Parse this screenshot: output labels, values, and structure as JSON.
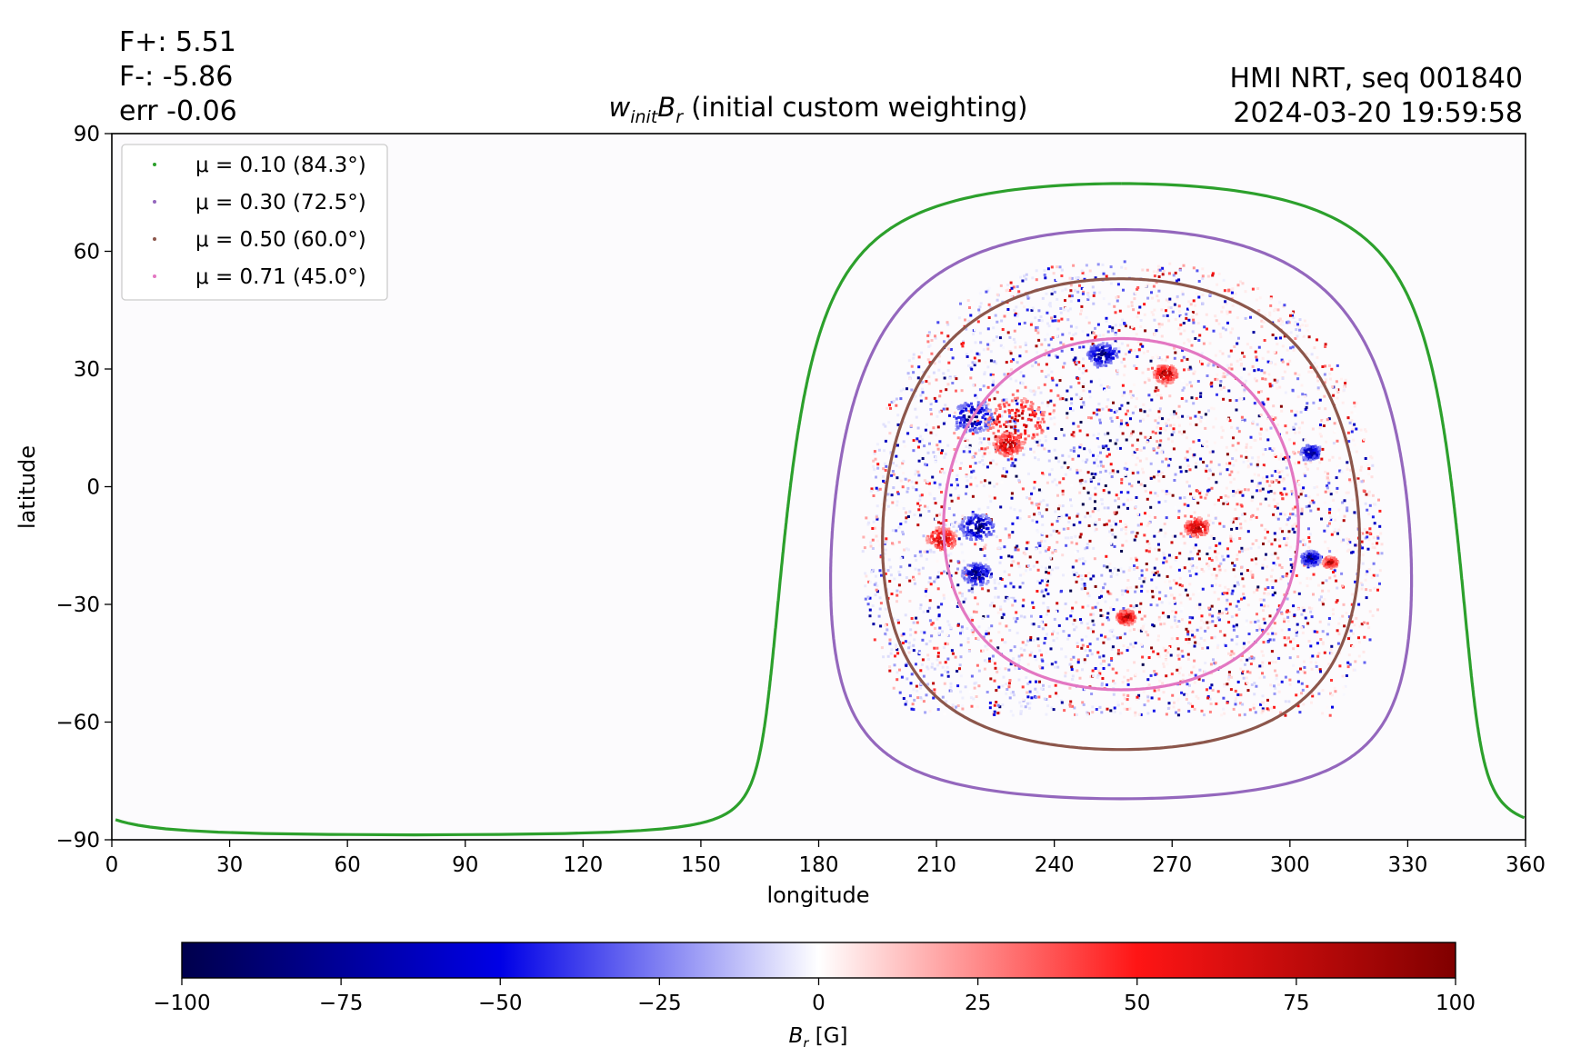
{
  "header": {
    "f_plus": "F+: 5.51",
    "f_minus": "F-: -5.86",
    "err": "err -0.06",
    "instrument": "HMI NRT, seq 001840",
    "timestamp": "2024-03-20 19:59:58"
  },
  "chart_data": {
    "type": "heatmap",
    "title_math": "w",
    "title_sub": "init",
    "title_math2": "B",
    "title_sub2": "r",
    "title_rest": " (initial custom weighting)",
    "xlabel": "longitude",
    "ylabel": "latitude",
    "xlim": [
      0,
      360
    ],
    "ylim": [
      -90,
      90
    ],
    "xticks": [
      0,
      30,
      60,
      90,
      120,
      150,
      180,
      210,
      240,
      270,
      300,
      330,
      360
    ],
    "yticks": [
      "90",
      "60",
      "30",
      "0",
      "−30",
      "−60",
      "−90"
    ],
    "ytick_values": [
      90,
      60,
      30,
      0,
      -30,
      -60,
      -90
    ],
    "grid": true,
    "legend_position": "top-left",
    "disk_center": {
      "lon": 257,
      "lat": -7
    },
    "contours": [
      {
        "label": "μ = 0.10 (84.3°)",
        "mu": 0.1,
        "angle_deg": 84.3,
        "color": "#2ca02c"
      },
      {
        "label": "μ = 0.30 (72.5°)",
        "mu": 0.3,
        "angle_deg": 72.5,
        "color": "#9467bd"
      },
      {
        "label": "μ = 0.50 (60.0°)",
        "mu": 0.5,
        "angle_deg": 60.0,
        "color": "#8c564b"
      },
      {
        "label": "μ = 0.71 (45.0°)",
        "mu": 0.71,
        "angle_deg": 45.0,
        "color": "#e377c2"
      }
    ],
    "colorbar": {
      "label_math": "B",
      "label_sub": "r",
      "label_unit": " [G]",
      "range": [
        -100,
        100
      ],
      "ticks": [
        "−100",
        "−75",
        "−50",
        "−25",
        "0",
        "25",
        "50",
        "75",
        "100"
      ],
      "tick_values": [
        -100,
        -75,
        -50,
        -25,
        0,
        25,
        50,
        75,
        100
      ],
      "colormap": "seismic"
    }
  }
}
